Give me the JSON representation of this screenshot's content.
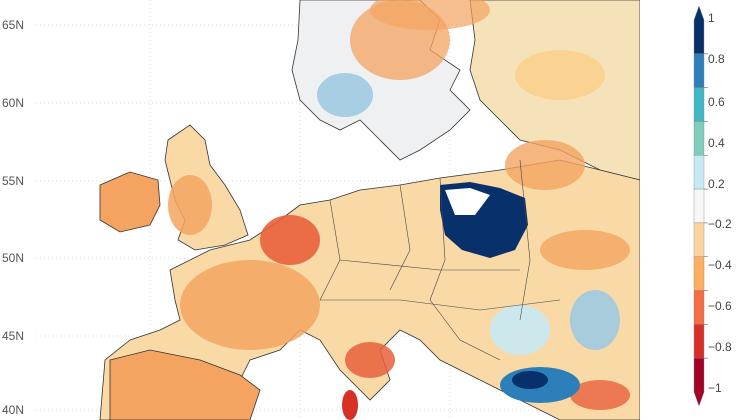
{
  "map": {
    "lat_labels": [
      "65N",
      "60N",
      "55N",
      "50N",
      "45N",
      "40N"
    ]
  },
  "colorbar": {
    "labels": [
      "1",
      "0.8",
      "0.6",
      "0.4",
      "0.2",
      "−0.2",
      "−0.4",
      "−0.6",
      "−0.8",
      "−1"
    ],
    "colors": [
      "#08306b",
      "#2c7fb8",
      "#41b6c4",
      "#7fcdbb",
      "#c7e9f5",
      "#f7f7f7",
      "#fdd49e",
      "#fdae61",
      "#f46d43",
      "#d73027",
      "#a50026"
    ]
  }
}
